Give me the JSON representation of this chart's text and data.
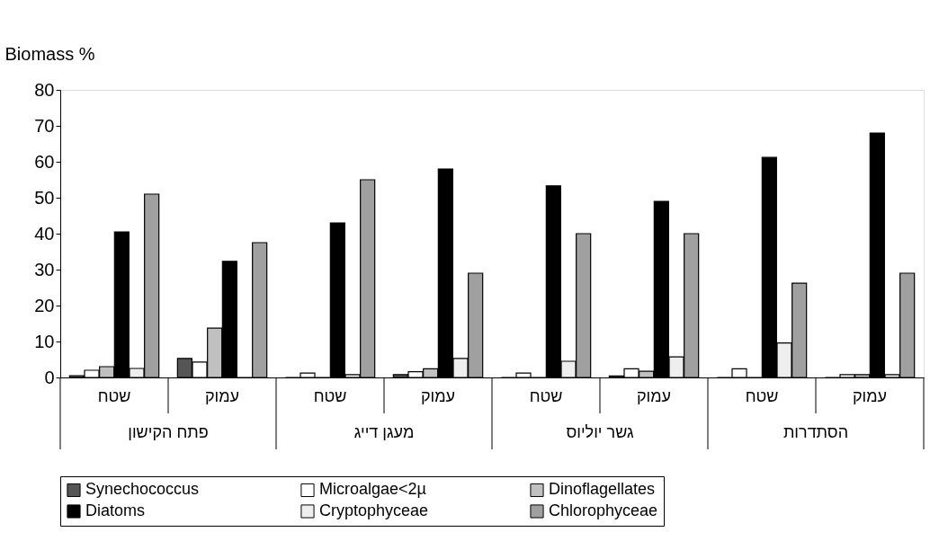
{
  "chart_data": {
    "type": "bar",
    "ylabel": "Biomass %",
    "categories": [
      "שטח",
      "עמוק",
      "שטח",
      "עמוק",
      "שטח",
      "עמוק",
      "שטח",
      "עמוק"
    ],
    "series": [
      {
        "name": "Synechococcus",
        "color": "#555555",
        "values": [
          0.5,
          5.3,
          0,
          0.8,
          0,
          0.4,
          0,
          0
        ]
      },
      {
        "name": "Microalgae<2µ",
        "color": "#ffffff",
        "values": [
          2,
          4.3,
          1.2,
          1.6,
          1.2,
          2.4,
          2.4,
          0.8
        ]
      },
      {
        "name": "Dinoflagellates",
        "color": "#c0c0c0",
        "values": [
          3,
          13.7,
          0,
          2.4,
          0,
          1.7,
          0,
          0.8
        ]
      },
      {
        "name": "Diatoms",
        "color": "#000000",
        "values": [
          40.5,
          32.3,
          43,
          58,
          53.3,
          49,
          61.2,
          68
        ]
      },
      {
        "name": "Cryptophyceae",
        "color": "#eeeeee",
        "values": [
          2.5,
          0,
          0.8,
          5.3,
          4.5,
          5.7,
          9.6,
          0.8
        ]
      },
      {
        "name": "Chlorophyceae",
        "color": "#a0a0a0",
        "values": [
          51,
          37.5,
          55,
          29,
          40,
          40,
          26.2,
          29
        ]
      }
    ],
    "ylim": [
      0,
      80
    ],
    "yticks": [
      0,
      10,
      20,
      30,
      40,
      50,
      60,
      70,
      80
    ],
    "annotations": [
      "פתח הקישון",
      "מעגן דייג",
      "גשר יוליוס",
      "הסתדרות"
    ],
    "grid": false,
    "legend": "bottom"
  }
}
